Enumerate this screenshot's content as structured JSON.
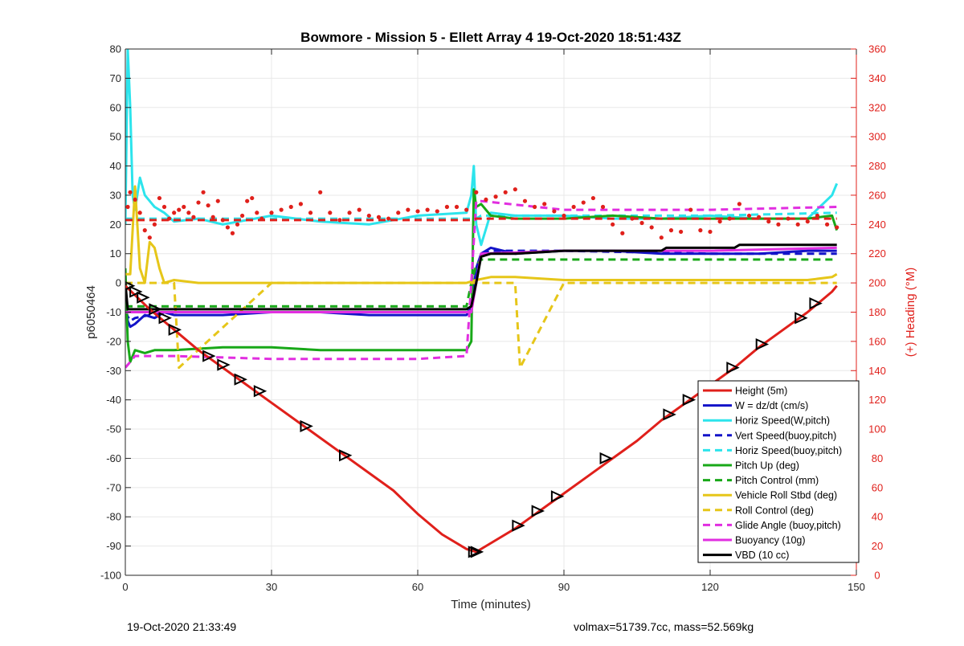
{
  "chart_data": {
    "type": "line",
    "title": "Bowmore - Mission 5 - Ellett Array 4 19-Oct-2020 18:51:43Z",
    "xlabel": "Time (minutes)",
    "ylabel_left": "p6050464",
    "ylabel_right": "(+) Heading (°M)",
    "xlim": [
      0,
      150
    ],
    "ylim_left": [
      -100,
      80
    ],
    "ylim_right": [
      0,
      360
    ],
    "x_ticks": [
      0,
      30,
      60,
      90,
      120,
      150
    ],
    "y_left_ticks": [
      -100,
      -90,
      -80,
      -70,
      -60,
      -50,
      -40,
      -30,
      -20,
      -10,
      0,
      10,
      20,
      30,
      40,
      50,
      60,
      70,
      80
    ],
    "y_right_ticks": [
      0,
      20,
      40,
      60,
      80,
      100,
      120,
      140,
      160,
      180,
      200,
      220,
      240,
      260,
      280,
      300,
      320,
      340,
      360
    ],
    "grid": true,
    "legend_position": "bottom-right",
    "series": [
      {
        "name": "Height (5m)",
        "color": "#e0201b",
        "style": "solid",
        "axis": "left",
        "x": [
          0,
          5,
          10,
          15,
          20,
          25,
          30,
          35,
          40,
          45,
          50,
          55,
          60,
          65,
          70,
          72,
          75,
          80,
          85,
          90,
          95,
          100,
          105,
          110,
          115,
          120,
          125,
          130,
          135,
          140,
          145,
          146
        ],
        "y": [
          -1,
          -9,
          -16,
          -23,
          -29,
          -35,
          -41,
          -47,
          -53,
          -59,
          -65,
          -71,
          -79,
          -86,
          -91,
          -92,
          -89,
          -84,
          -78,
          -72,
          -66,
          -60,
          -54,
          -47,
          -41,
          -35,
          -29,
          -22,
          -16,
          -10,
          -3,
          -1
        ]
      },
      {
        "name": "W = dz/dt (cm/s)",
        "color": "#1313c8",
        "style": "solid",
        "axis": "left",
        "x": [
          0,
          0.5,
          1,
          2,
          4,
          6,
          8,
          10,
          20,
          30,
          40,
          50,
          60,
          70,
          71,
          72,
          73,
          75,
          80,
          90,
          100,
          110,
          120,
          130,
          140,
          146
        ],
        "y": [
          -5,
          -13,
          -15,
          -14,
          -11,
          -12,
          -10,
          -11,
          -11,
          -10,
          -10,
          -11,
          -11,
          -11,
          -9,
          5,
          10,
          12,
          10,
          11,
          11,
          10,
          10,
          10,
          11,
          11
        ]
      },
      {
        "name": "Horiz Speed(W,pitch)",
        "color": "#2ce4ec",
        "style": "solid",
        "axis": "left",
        "x": [
          0,
          0.5,
          1,
          1.5,
          2,
          3,
          4,
          6,
          8,
          10,
          15,
          20,
          30,
          40,
          50,
          60,
          70,
          71,
          71.5,
          72,
          73,
          75,
          80,
          90,
          100,
          110,
          120,
          130,
          140,
          145,
          146
        ],
        "y": [
          20,
          80,
          60,
          30,
          25,
          36,
          30,
          26,
          24,
          21,
          22,
          20,
          23,
          21,
          20,
          23,
          24,
          30,
          40,
          20,
          13,
          24,
          23,
          23,
          22,
          22,
          23,
          22,
          22,
          30,
          34
        ]
      },
      {
        "name": "Vert Speed(buoy,pitch)",
        "color": "#1313c8",
        "style": "dashed",
        "axis": "left",
        "x": [
          0,
          1,
          2,
          5,
          10,
          30,
          60,
          70,
          71,
          72,
          73,
          75,
          90,
          120,
          146
        ],
        "y": [
          -10,
          -13,
          -12,
          -11,
          -10,
          -10,
          -10,
          -10,
          -8,
          4,
          10,
          11,
          11,
          10,
          10
        ]
      },
      {
        "name": "Horiz Speed(buoy,pitch)",
        "color": "#2ce4ec",
        "style": "dashed",
        "axis": "left",
        "x": [
          0,
          5,
          30,
          60,
          71,
          72,
          73,
          90,
          120,
          146
        ],
        "y": [
          22,
          22,
          22,
          22,
          22,
          22,
          23,
          23,
          23,
          24
        ]
      },
      {
        "name": "Pitch Up (deg)",
        "color": "#18a818",
        "style": "solid",
        "axis": "left",
        "x": [
          0,
          0.5,
          1,
          2,
          4,
          6,
          10,
          20,
          30,
          40,
          50,
          60,
          70,
          71,
          71.5,
          72,
          73,
          75,
          80,
          90,
          100,
          110,
          120,
          130,
          140,
          145,
          146
        ],
        "y": [
          5,
          -20,
          -27,
          -23,
          -24,
          -23,
          -23,
          -22,
          -22,
          -23,
          -23,
          -23,
          -23,
          -20,
          32,
          26,
          27,
          23,
          22,
          22,
          23,
          22,
          22,
          22,
          22,
          23,
          18
        ]
      },
      {
        "name": "Pitch Control (mm)",
        "color": "#18a818",
        "style": "dashed",
        "axis": "left",
        "x": [
          0,
          1,
          30,
          60,
          70,
          71,
          72,
          73,
          90,
          146
        ],
        "y": [
          -8,
          -8,
          -8,
          -8,
          -8,
          0,
          6,
          8,
          8,
          8
        ]
      },
      {
        "name": "Vehicle Roll Stbd (deg)",
        "color": "#e6c619",
        "style": "solid",
        "axis": "left",
        "x": [
          0,
          1,
          2,
          3,
          4,
          5,
          6,
          7,
          8,
          10,
          15,
          20,
          25,
          30,
          37,
          40,
          45,
          50,
          60,
          70,
          72,
          75,
          80,
          90,
          100,
          110,
          120,
          130,
          140,
          145,
          146
        ],
        "y": [
          3,
          3,
          33,
          5,
          0,
          14,
          12,
          5,
          0,
          1,
          0,
          0,
          0,
          0,
          0,
          0,
          0,
          0,
          0,
          0,
          1,
          2,
          2,
          1,
          1,
          1,
          1,
          1,
          1,
          2,
          3
        ]
      },
      {
        "name": "Roll Control (deg)",
        "color": "#e6c619",
        "style": "dashed",
        "axis": "left",
        "x": [
          0,
          10,
          11,
          30,
          60,
          72,
          80,
          81,
          90,
          100,
          110,
          120,
          130,
          140,
          146
        ],
        "y": [
          0,
          0,
          -29,
          0,
          0,
          0,
          0,
          -29,
          0,
          0,
          0,
          0,
          0,
          0,
          0
        ]
      },
      {
        "name": "Glide Angle (buoy,pitch)",
        "color": "#e12ee0",
        "style": "dashed",
        "axis": "left",
        "x": [
          0,
          1,
          2,
          5,
          10,
          30,
          60,
          70,
          71,
          72,
          73,
          90,
          120,
          146
        ],
        "y": [
          -29,
          -27,
          -25,
          -25,
          -25,
          -26,
          -26,
          -25,
          0,
          28,
          28,
          25,
          25,
          26
        ]
      },
      {
        "name": "Buoyancy (10g)",
        "color": "#e12ee0",
        "style": "solid",
        "axis": "left",
        "x": [
          0,
          1,
          30,
          60,
          71,
          72,
          73,
          90,
          120,
          146
        ],
        "y": [
          -10,
          -10,
          -10,
          -10,
          -10,
          0,
          10,
          11,
          11,
          12
        ]
      },
      {
        "name": "VBD (10 cc)",
        "color": "#000000",
        "style": "solid",
        "axis": "left",
        "x": [
          0,
          0.5,
          1,
          5,
          30,
          60,
          70,
          71,
          72,
          73,
          75,
          80,
          90,
          110,
          111,
          125,
          126,
          140,
          146
        ],
        "y": [
          0,
          -9,
          -9,
          -9,
          -9,
          -9,
          -9,
          -8,
          0,
          9,
          10,
          10,
          11,
          11,
          12,
          12,
          13,
          13,
          13
        ]
      },
      {
        "name": "",
        "color": "#e0201b",
        "style": "dashed",
        "axis": "right",
        "x": [
          0,
          71,
          72,
          146
        ],
        "y": [
          243,
          243,
          244,
          244
        ]
      },
      {
        "name": "",
        "color": "#e0201b",
        "style": "markers",
        "axis": "right",
        "x": [
          0.5,
          1,
          2,
          3,
          4,
          5,
          6,
          7,
          8,
          9,
          10,
          11,
          12,
          13,
          14,
          15,
          16,
          17,
          18,
          19,
          20,
          21,
          22,
          23,
          24,
          25,
          26,
          27,
          28,
          30,
          32,
          34,
          36,
          38,
          40,
          42,
          44,
          46,
          48,
          50,
          52,
          54,
          56,
          58,
          60,
          62,
          64,
          66,
          68,
          70,
          72,
          74,
          76,
          78,
          80,
          82,
          84,
          86,
          88,
          90,
          92,
          94,
          96,
          98,
          100,
          102,
          104,
          106,
          108,
          110,
          112,
          114,
          116,
          118,
          120,
          122,
          124,
          126,
          128,
          130,
          132,
          134,
          136,
          138,
          140,
          142,
          144,
          146
        ],
        "y": [
          252,
          262,
          257,
          248,
          236,
          231,
          240,
          258,
          252,
          244,
          248,
          250,
          252,
          248,
          245,
          255,
          262,
          253,
          245,
          256,
          243,
          238,
          234,
          240,
          246,
          256,
          258,
          248,
          244,
          248,
          250,
          252,
          254,
          248,
          262,
          248,
          243,
          248,
          250,
          246,
          245,
          244,
          248,
          250,
          249,
          250,
          249,
          252,
          252,
          250,
          262,
          257,
          259,
          262,
          264,
          256,
          252,
          254,
          249,
          246,
          252,
          255,
          258,
          252,
          240,
          234,
          244,
          241,
          238,
          231,
          236,
          235,
          250,
          236,
          235,
          242,
          244,
          254,
          246,
          245,
          242,
          240,
          244,
          240,
          242,
          246,
          240,
          238
        ]
      }
    ],
    "markers": {
      "shape": "triangle",
      "color": "#000000",
      "x": [
        0.5,
        2,
        3.5,
        6,
        8,
        10,
        17,
        20,
        23.5,
        27.5,
        37,
        45,
        71.5,
        72,
        80.5,
        84.5,
        88.5,
        98.5,
        111.5,
        115.5,
        124.5,
        130.5,
        138.5,
        141.5
      ],
      "y": [
        -1,
        -3,
        -5,
        -9,
        -12,
        -16,
        -25,
        -28,
        -33,
        -37,
        -49,
        -59,
        -92,
        -92,
        -83,
        -78,
        -73,
        -60,
        -45,
        -40,
        -29,
        -21,
        -12,
        -7
      ]
    },
    "legend": [
      "Height (5m)",
      "W = dz/dt (cm/s)",
      "Horiz Speed(W,pitch)",
      "Vert Speed(buoy,pitch)",
      "Horiz Speed(buoy,pitch)",
      "Pitch Up (deg)",
      "Pitch Control (mm)",
      "Vehicle Roll Stbd (deg)",
      "Roll Control (deg)",
      "Glide Angle (buoy,pitch)",
      "Buoyancy (10g)",
      "VBD (10 cc)"
    ]
  },
  "footer": {
    "timestamp": "19-Oct-2020 21:33:49",
    "stats": "volmax=51739.7cc, mass=52.569kg"
  },
  "colors": {
    "left_axis": "#262626",
    "right_axis": "#e0201b",
    "grid": "#e8e8e8"
  }
}
